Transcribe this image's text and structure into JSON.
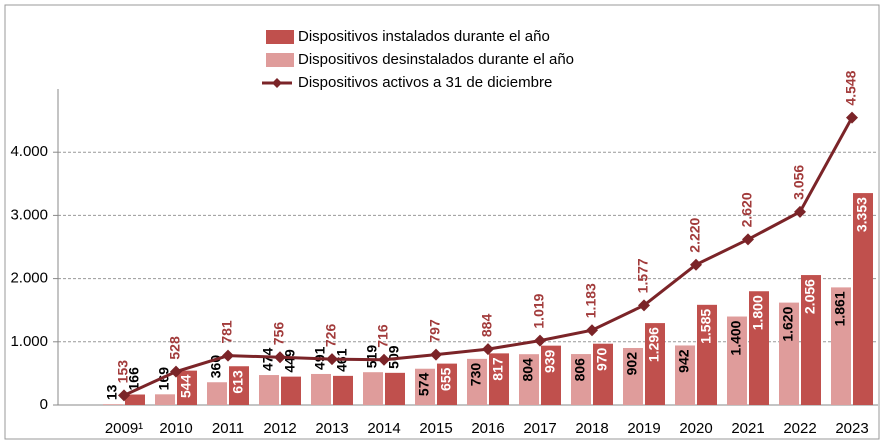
{
  "chart_data": {
    "type": "bar_line",
    "categories": [
      "2009¹",
      "2010",
      "2011",
      "2012",
      "2013",
      "2014",
      "2015",
      "2016",
      "2017",
      "2018",
      "2019",
      "2020",
      "2021",
      "2022",
      "2023"
    ],
    "series": [
      {
        "name": "Dispositivos instalados durante el año",
        "color": "#c0504d",
        "values": [
          166,
          544,
          613,
          449,
          461,
          509,
          655,
          817,
          939,
          970,
          1296,
          1585,
          1800,
          2056,
          3353
        ],
        "value_labels": [
          "166",
          "544",
          "613",
          "449",
          "461",
          "509",
          "655",
          "817",
          "939",
          "970",
          "1.296",
          "1.585",
          "1.800",
          "2.056",
          "3.353"
        ]
      },
      {
        "name": "Dispositivos desinstalados durante el año",
        "color": "#df9c9b",
        "values": [
          13,
          169,
          360,
          474,
          491,
          519,
          574,
          730,
          804,
          806,
          902,
          942,
          1400,
          1620,
          1861
        ],
        "value_labels": [
          "13",
          "169",
          "360",
          "474",
          "491",
          "519",
          "574",
          "730",
          "804",
          "806",
          "902",
          "942",
          "1.400",
          "1.620",
          "1.861"
        ]
      },
      {
        "name": "Dispositivos activos a 31 de diciembre",
        "color": "#7b2428",
        "type": "line",
        "values": [
          153,
          528,
          781,
          756,
          726,
          716,
          797,
          884,
          1019,
          1183,
          1577,
          2220,
          2620,
          3056,
          4548
        ],
        "value_labels": [
          "153",
          "528",
          "781",
          "756",
          "726",
          "716",
          "797",
          "884",
          "1.019",
          "1.183",
          "1.577",
          "2.220",
          "2.620",
          "3.056",
          "4.548"
        ]
      }
    ],
    "ylim": [
      0,
      5000
    ],
    "yticks": [
      0,
      {
        "value": 1000,
        "label": "1.000"
      },
      {
        "value": 2000,
        "label": "2.000"
      },
      {
        "value": 3000,
        "label": "3.000"
      },
      {
        "value": 4000,
        "label": "4.000"
      }
    ],
    "grid": true,
    "legend": "top"
  }
}
